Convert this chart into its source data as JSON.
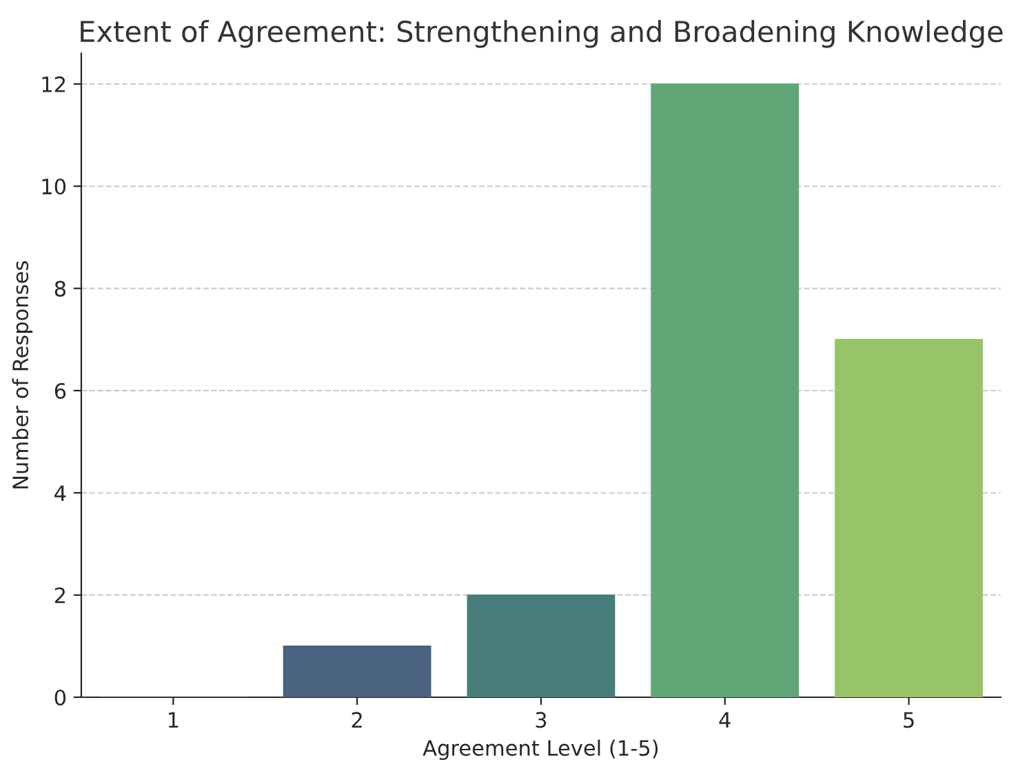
{
  "chart_data": {
    "type": "bar",
    "title": "Extent of Agreement: Strengthening and Broadening Knowledge",
    "xlabel": "Agreement Level (1-5)",
    "ylabel": "Number of Responses",
    "categories": [
      "1",
      "2",
      "3",
      "4",
      "5"
    ],
    "values": [
      0,
      1,
      2,
      12,
      7
    ],
    "colors": [
      "#433e85",
      "#48627f",
      "#467d7a",
      "#61a677",
      "#97c466"
    ],
    "ylim": [
      0,
      12.6
    ],
    "yticks": [
      0,
      2,
      4,
      6,
      8,
      10,
      12
    ],
    "grid": "y"
  }
}
